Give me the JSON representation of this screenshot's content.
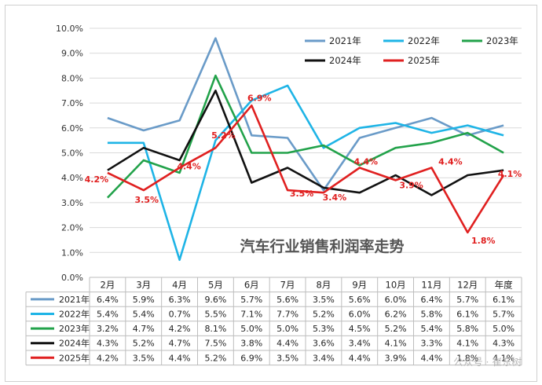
{
  "chart_data": {
    "type": "line",
    "title": "汽车行业销售利润率走势",
    "categories": [
      "2月",
      "3月",
      "4月",
      "5月",
      "6月",
      "7月",
      "8月",
      "9月",
      "10月",
      "11月",
      "12月",
      "年度"
    ],
    "yticks": [
      "0.0%",
      "1.0%",
      "2.0%",
      "3.0%",
      "4.0%",
      "5.0%",
      "6.0%",
      "7.0%",
      "8.0%",
      "9.0%",
      "10.0%"
    ],
    "ylim": [
      0,
      10
    ],
    "legend_position": "top-right",
    "series": [
      {
        "name": "2021年",
        "color": "#6a9bc8",
        "values": [
          6.4,
          5.9,
          6.3,
          9.6,
          5.7,
          5.6,
          3.5,
          5.6,
          6.0,
          6.4,
          5.7,
          6.1
        ],
        "cells": [
          "6.4%",
          "5.9%",
          "6.3%",
          "9.6%",
          "5.7%",
          "5.6%",
          "3.5%",
          "5.6%",
          "6.0%",
          "6.4%",
          "5.7%",
          "6.1%"
        ]
      },
      {
        "name": "2022年",
        "color": "#1eb4e6",
        "values": [
          5.4,
          5.4,
          0.7,
          5.5,
          7.1,
          7.7,
          5.2,
          6.0,
          6.2,
          5.8,
          6.1,
          5.7
        ],
        "cells": [
          "5.4%",
          "5.4%",
          "0.7%",
          "5.5%",
          "7.1%",
          "7.7%",
          "5.2%",
          "6.0%",
          "6.2%",
          "5.8%",
          "6.1%",
          "5.7%"
        ]
      },
      {
        "name": "2023年",
        "color": "#22a24a",
        "values": [
          3.2,
          4.7,
          4.2,
          8.1,
          5.0,
          5.0,
          5.3,
          4.5,
          5.2,
          5.4,
          5.8,
          5.0
        ],
        "cells": [
          "3.2%",
          "4.7%",
          "4.2%",
          "8.1%",
          "5.0%",
          "5.0%",
          "5.3%",
          "4.5%",
          "5.2%",
          "5.4%",
          "5.8%",
          "5.0%"
        ]
      },
      {
        "name": "2024年",
        "color": "#111111",
        "values": [
          4.3,
          5.2,
          4.7,
          7.5,
          3.8,
          4.4,
          3.6,
          3.4,
          4.1,
          3.3,
          4.1,
          4.3
        ],
        "cells": [
          "4.3%",
          "5.2%",
          "4.7%",
          "7.5%",
          "3.8%",
          "4.4%",
          "3.6%",
          "3.4%",
          "4.1%",
          "3.3%",
          "4.1%",
          "4.3%"
        ]
      },
      {
        "name": "2025年",
        "color": "#e02020",
        "values": [
          4.2,
          3.5,
          4.4,
          5.2,
          6.9,
          3.5,
          3.4,
          4.4,
          3.9,
          4.4,
          1.8,
          4.1
        ],
        "cells": [
          "4.2%",
          "3.5%",
          "4.4%",
          "5.2%",
          "6.9%",
          "3.5%",
          "3.4%",
          "4.4%",
          "3.9%",
          "4.4%",
          "1.8%",
          "4.1%"
        ],
        "data_labels": [
          "4.2%",
          "3.5%",
          "4.4%",
          "5.2%",
          "6.9%",
          "3.5%",
          "3.4%",
          "4.4%",
          "3.9%",
          "4.4%",
          "1.8%",
          "4.1%"
        ]
      }
    ]
  },
  "watermark": "公众号 · 崔东树"
}
